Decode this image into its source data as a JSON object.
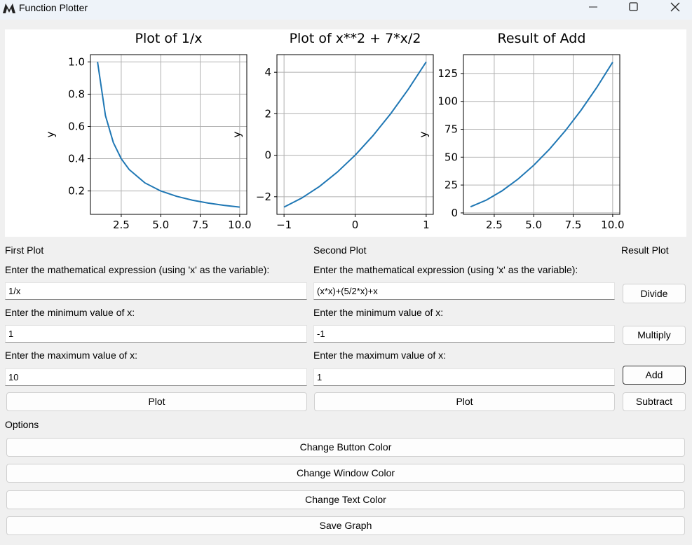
{
  "window": {
    "title": "Function Plotter"
  },
  "chart_data": [
    {
      "type": "line",
      "title": "Plot of 1/x",
      "ylabel": "y",
      "x": [
        1,
        1.5,
        2,
        2.5,
        3,
        4,
        5,
        6,
        7,
        8,
        9,
        10
      ],
      "series": [
        {
          "color": "#1f77b4",
          "values": [
            1,
            0.667,
            0.5,
            0.4,
            0.333,
            0.25,
            0.2,
            0.167,
            0.143,
            0.125,
            0.111,
            0.1
          ]
        }
      ],
      "xlim": [
        0.55,
        10.45
      ],
      "ylim": [
        0.055,
        1.045
      ],
      "xticks": [
        2.5,
        {
          "value": 5,
          "label": "5.0"
        },
        7.5,
        {
          "value": 10,
          "label": "10.0"
        }
      ],
      "yticks": [
        0.2,
        0.4,
        0.6,
        0.8,
        {
          "value": 1,
          "label": "1.0"
        }
      ],
      "grid": true
    },
    {
      "type": "line",
      "title": "Plot of x**2 + 7*x/2",
      "ylabel": "y",
      "x": [
        -1,
        -0.75,
        -0.5,
        -0.25,
        0,
        0.25,
        0.5,
        0.75,
        1
      ],
      "series": [
        {
          "color": "#1f77b4",
          "values": [
            -2.5,
            -2.0625,
            -1.5,
            -0.8125,
            0,
            0.9375,
            2,
            3.1875,
            4.5
          ]
        }
      ],
      "xlim": [
        -1.1,
        1.1
      ],
      "ylim": [
        -2.85,
        4.85
      ],
      "xticks": [
        {
          "value": -1,
          "label": "−1"
        },
        0,
        1
      ],
      "yticks": [
        {
          "value": -2,
          "label": "−2"
        },
        0,
        2,
        4
      ],
      "grid": true
    },
    {
      "type": "line",
      "title": "Result of Add",
      "ylabel": "y",
      "x": [
        1,
        2,
        3,
        4,
        5,
        6,
        7,
        8,
        9,
        10
      ],
      "series": [
        {
          "color": "#1f77b4",
          "values": [
            5.5,
            11.5,
            19.83,
            30.25,
            42.7,
            57.17,
            73.64,
            92.13,
            112.61,
            135.1
          ]
        }
      ],
      "xlim": [
        0.55,
        10.45
      ],
      "ylim": [
        -1.3,
        141.9
      ],
      "xticks": [
        2.5,
        {
          "value": 5,
          "label": "5.0"
        },
        7.5,
        {
          "value": 10,
          "label": "10.0"
        }
      ],
      "yticks": [
        0,
        25,
        50,
        75,
        100,
        125
      ],
      "grid": true
    }
  ],
  "first_plot": {
    "heading": "First Plot",
    "expression_label": "Enter the mathematical expression (using 'x' as the variable):",
    "expression": "1/x",
    "min_label": "Enter the minimum value of x:",
    "min": "1",
    "max_label": "Enter the maximum value of x:",
    "max": "10",
    "plot_button": "Plot"
  },
  "second_plot": {
    "heading": "Second Plot",
    "expression_label": "Enter the mathematical expression (using 'x' as the variable):",
    "expression": "(x*x)+(5/2*x)+x",
    "min_label": "Enter the minimum value of x:",
    "min": "-1",
    "max_label": "Enter the maximum value of x:",
    "max": "1",
    "plot_button": "Plot"
  },
  "result_plot": {
    "heading": "Result Plot",
    "buttons": [
      "Divide",
      "Multiply",
      "Add",
      "Subtract"
    ]
  },
  "options": {
    "heading": "Options",
    "buttons": [
      "Change Button Color",
      "Change Window Color",
      "Change Text Color",
      "Save Graph"
    ]
  }
}
